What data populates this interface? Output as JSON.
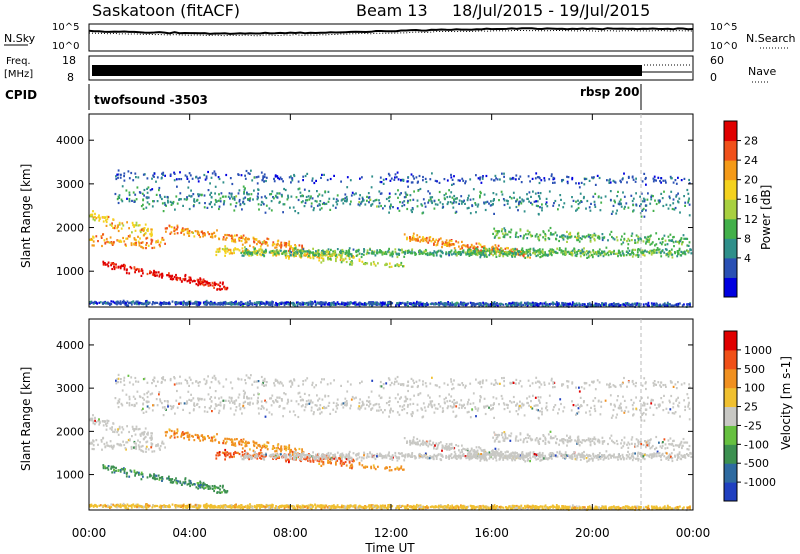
{
  "header": {
    "station": "Saskatoon (fitACF)",
    "beam": "Beam 13",
    "date_range": "18/Jul/2015 - 19/Jul/2015"
  },
  "noise_panel": {
    "left_label": "N.Sky",
    "right_label": "N.Search",
    "left_ticks": [
      "10^5",
      "10^0"
    ],
    "right_ticks": [
      "10^5",
      "10^0"
    ]
  },
  "freq_panel": {
    "left_label_1": "Freq.",
    "left_label_2": "[MHz]",
    "left_ticks": [
      "18",
      "8"
    ],
    "right_ticks": [
      "60",
      "0"
    ],
    "right_label": "Nave"
  },
  "cpid_panel": {
    "label": "CPID",
    "programs": [
      "twofsound -3503",
      "rbsp 200"
    ]
  },
  "chart_data": [
    {
      "type": "heatmap",
      "panel": "power",
      "ylabel": "Slant Range [km]",
      "y_ticks": [
        "4000",
        "3000",
        "2000",
        "1000"
      ],
      "ylim": [
        180,
        4600
      ],
      "xlim_hours": [
        0,
        24
      ],
      "colorbar": {
        "label": "Power [dB]",
        "ticks": [
          "28",
          "24",
          "20",
          "16",
          "12",
          "8",
          "4"
        ],
        "colors": [
          "#0000e0",
          "#2a50b4",
          "#2f8f8a",
          "#42b04a",
          "#a8d040",
          "#f4d21e",
          "#f49a18",
          "#f0501a",
          "#e00000"
        ]
      }
    },
    {
      "type": "heatmap",
      "panel": "velocity",
      "ylabel": "Slant Range [km]",
      "y_ticks": [
        "4000",
        "3000",
        "2000",
        "1000"
      ],
      "ylim": [
        180,
        4600
      ],
      "xlim_hours": [
        0,
        24
      ],
      "xlabel": "Time UT",
      "x_ticks": [
        "00:00",
        "04:00",
        "08:00",
        "12:00",
        "16:00",
        "20:00",
        "00:00"
      ],
      "colorbar": {
        "label": "Velocity [m s-1]",
        "ticks": [
          "1000",
          "500",
          "100",
          "25",
          "-25",
          "-100",
          "-500",
          "-1000"
        ],
        "colors": [
          "#2040c0",
          "#2e6aa0",
          "#3c9050",
          "#66c040",
          "#c8c8c4",
          "#f0c030",
          "#f09020",
          "#f05018",
          "#e00000"
        ]
      }
    }
  ]
}
